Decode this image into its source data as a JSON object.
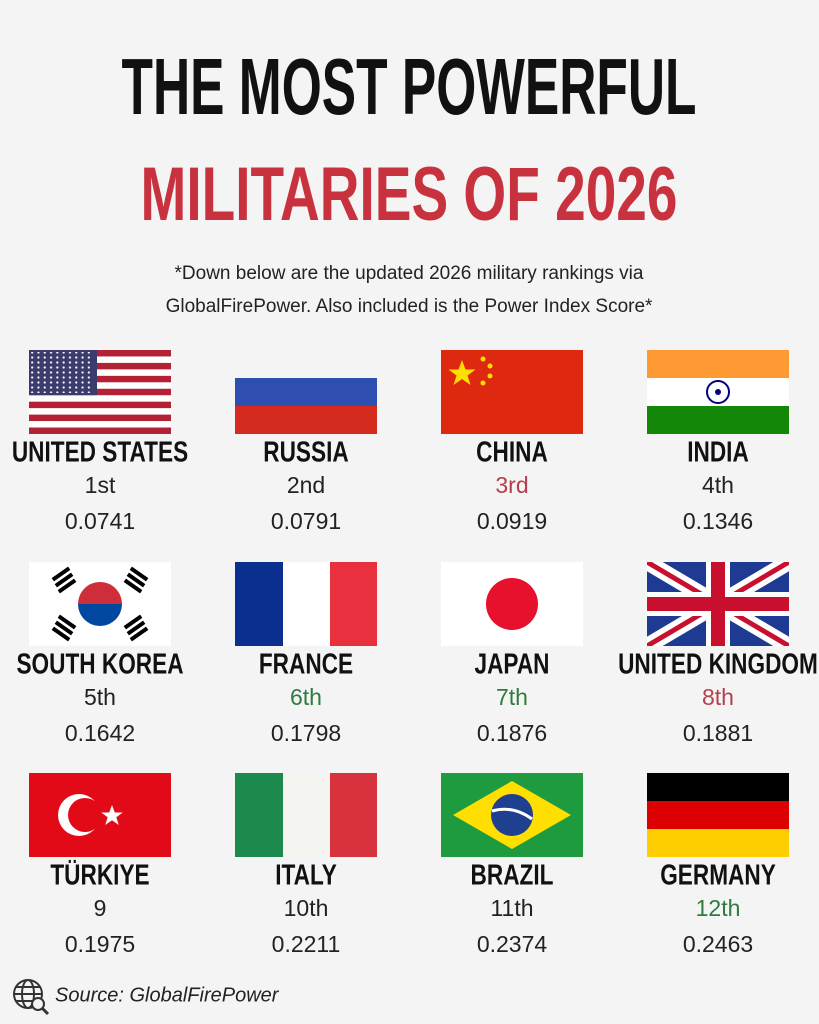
{
  "header": {
    "title_line1": "THE MOST POWERFUL",
    "title_line2": "MILITARIES OF 2026",
    "subtitle_line1": "*Down below are the updated 2026 military rankings via",
    "subtitle_line2": "GlobalFirePower. Also included is the Power Index Score*"
  },
  "countries": [
    {
      "name": "UNITED STATES",
      "rank": "1st",
      "score": "0.0741",
      "rank_color": "#222222"
    },
    {
      "name": "RUSSIA",
      "rank": "2nd",
      "score": "0.0791",
      "rank_color": "#222222"
    },
    {
      "name": "CHINA",
      "rank": "3rd",
      "score": "0.0919",
      "rank_color": "#b3404c"
    },
    {
      "name": "INDIA",
      "rank": "4th",
      "score": "0.1346",
      "rank_color": "#222222"
    },
    {
      "name": "SOUTH KOREA",
      "rank": "5th",
      "score": "0.1642",
      "rank_color": "#222222"
    },
    {
      "name": "FRANCE",
      "rank": "6th",
      "score": "0.1798",
      "rank_color": "#2f7a3f"
    },
    {
      "name": "JAPAN",
      "rank": "7th",
      "score": "0.1876",
      "rank_color": "#2f7a3f"
    },
    {
      "name": "UNITED KINGDOM",
      "rank": "8th",
      "score": "0.1881",
      "rank_color": "#b3404c"
    },
    {
      "name": "TÜRKIYE",
      "rank": "9",
      "score": "0.1975",
      "rank_color": "#222222"
    },
    {
      "name": "ITALY",
      "rank": "10th",
      "score": "0.2211",
      "rank_color": "#222222"
    },
    {
      "name": "BRAZIL",
      "rank": "11th",
      "score": "0.2374",
      "rank_color": "#222222"
    },
    {
      "name": "GERMANY",
      "rank": "12th",
      "score": "0.2463",
      "rank_color": "#2f7a3f"
    }
  ],
  "footer": {
    "source": "Source: GlobalFirePower"
  }
}
